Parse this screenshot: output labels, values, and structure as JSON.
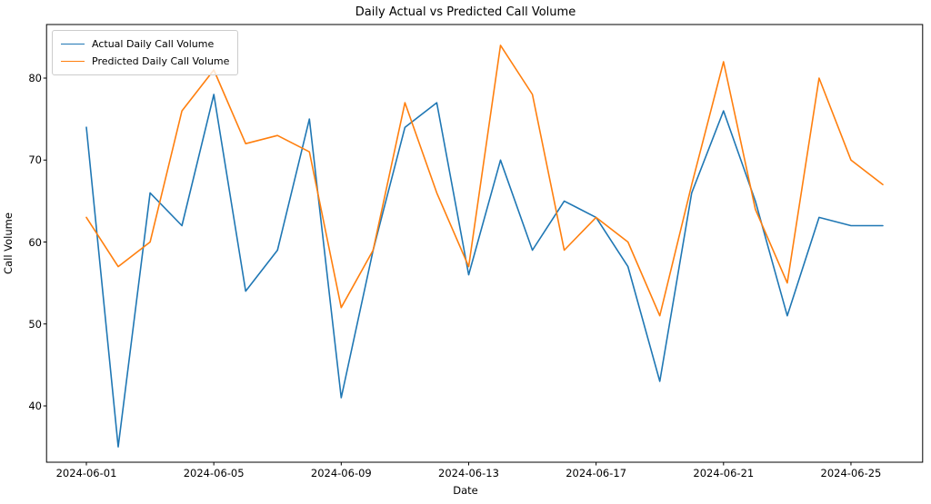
{
  "chart_data": {
    "type": "line",
    "title": "Daily Actual vs Predicted Call Volume",
    "xlabel": "Date",
    "ylabel": "Call Volume",
    "x": [
      "2024-06-01",
      "2024-06-02",
      "2024-06-03",
      "2024-06-04",
      "2024-06-05",
      "2024-06-06",
      "2024-06-07",
      "2024-06-08",
      "2024-06-09",
      "2024-06-10",
      "2024-06-11",
      "2024-06-12",
      "2024-06-13",
      "2024-06-14",
      "2024-06-15",
      "2024-06-16",
      "2024-06-17",
      "2024-06-18",
      "2024-06-19",
      "2024-06-20",
      "2024-06-21",
      "2024-06-22",
      "2024-06-23",
      "2024-06-24",
      "2024-06-25",
      "2024-06-26"
    ],
    "series": [
      {
        "name": "Actual Daily Call Volume",
        "color": "#1f77b4",
        "values": [
          74,
          35,
          66,
          62,
          78,
          54,
          59,
          75,
          41,
          59,
          74,
          77,
          56,
          70,
          59,
          65,
          63,
          57,
          43,
          66,
          76,
          65,
          51,
          63,
          62,
          62
        ]
      },
      {
        "name": "Predicted Daily Call Volume",
        "color": "#ff7f0e",
        "values": [
          63,
          57,
          60,
          76,
          81,
          72,
          73,
          71,
          52,
          59,
          77,
          66,
          57,
          84,
          78,
          59,
          63,
          60,
          51,
          67,
          82,
          64,
          55,
          80,
          70,
          67
        ]
      }
    ],
    "yticks": [
      40,
      50,
      60,
      70,
      80
    ],
    "xtick_indices": [
      0,
      4,
      8,
      12,
      16,
      20,
      24
    ],
    "xtick_labels": [
      "2024-06-01",
      "2024-06-05",
      "2024-06-09",
      "2024-06-13",
      "2024-06-17",
      "2024-06-21",
      "2024-06-25"
    ],
    "ylim": [
      33.1,
      86.5
    ],
    "grid": false,
    "legend_position": "upper left",
    "frame_color": "#000000"
  }
}
